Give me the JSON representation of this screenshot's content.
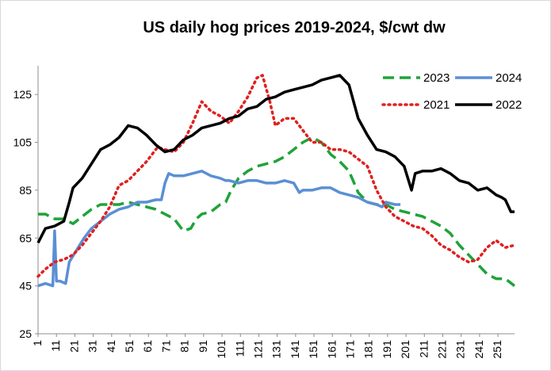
{
  "chart_data": {
    "type": "line",
    "title": "US daily hog prices 2019-2024, $/cwt dw",
    "xlabel": "",
    "ylabel": "",
    "xlim": [
      1,
      260
    ],
    "ylim": [
      25,
      135
    ],
    "x_ticks": [
      1,
      11,
      21,
      31,
      41,
      51,
      61,
      71,
      81,
      91,
      101,
      111,
      121,
      131,
      141,
      151,
      161,
      171,
      181,
      191,
      201,
      211,
      221,
      231,
      241,
      251
    ],
    "y_ticks": [
      25,
      45,
      65,
      85,
      105,
      125
    ],
    "grid": false,
    "legend": "top-right",
    "series": [
      {
        "name": "2023",
        "color": "#1fa33a",
        "style": "dashed",
        "points": [
          [
            1,
            75
          ],
          [
            5,
            75
          ],
          [
            10,
            73
          ],
          [
            15,
            73
          ],
          [
            20,
            71
          ],
          [
            25,
            74
          ],
          [
            30,
            77
          ],
          [
            35,
            79
          ],
          [
            40,
            79
          ],
          [
            45,
            79
          ],
          [
            50,
            80
          ],
          [
            55,
            79
          ],
          [
            60,
            78
          ],
          [
            65,
            77
          ],
          [
            70,
            75
          ],
          [
            75,
            73
          ],
          [
            80,
            68
          ],
          [
            84,
            69
          ],
          [
            87,
            73
          ],
          [
            90,
            75
          ],
          [
            95,
            76
          ],
          [
            100,
            79
          ],
          [
            103,
            80
          ],
          [
            106,
            85
          ],
          [
            110,
            90
          ],
          [
            115,
            93
          ],
          [
            120,
            95
          ],
          [
            125,
            96
          ],
          [
            130,
            97
          ],
          [
            135,
            99
          ],
          [
            140,
            102
          ],
          [
            145,
            105
          ],
          [
            150,
            107
          ],
          [
            155,
            105
          ],
          [
            160,
            100
          ],
          [
            165,
            97
          ],
          [
            170,
            93
          ],
          [
            175,
            84
          ],
          [
            180,
            80
          ],
          [
            185,
            79
          ],
          [
            190,
            79
          ],
          [
            195,
            77
          ],
          [
            200,
            76
          ],
          [
            205,
            75
          ],
          [
            210,
            74
          ],
          [
            215,
            72
          ],
          [
            220,
            70
          ],
          [
            225,
            67
          ],
          [
            230,
            62
          ],
          [
            235,
            58
          ],
          [
            240,
            54
          ],
          [
            245,
            50
          ],
          [
            250,
            48
          ],
          [
            255,
            48
          ],
          [
            260,
            45
          ]
        ]
      },
      {
        "name": "2024",
        "color": "#5b8fd4",
        "style": "solid",
        "points": [
          [
            1,
            45
          ],
          [
            5,
            46
          ],
          [
            9,
            45
          ],
          [
            10,
            68
          ],
          [
            11,
            47
          ],
          [
            13,
            47
          ],
          [
            16,
            46
          ],
          [
            18,
            55
          ],
          [
            22,
            60
          ],
          [
            26,
            65
          ],
          [
            30,
            69
          ],
          [
            35,
            72
          ],
          [
            40,
            75
          ],
          [
            45,
            77
          ],
          [
            50,
            78
          ],
          [
            55,
            80
          ],
          [
            60,
            80
          ],
          [
            65,
            81
          ],
          [
            68,
            81
          ],
          [
            70,
            88
          ],
          [
            72,
            92
          ],
          [
            75,
            91
          ],
          [
            80,
            91
          ],
          [
            85,
            92
          ],
          [
            90,
            93
          ],
          [
            95,
            91
          ],
          [
            100,
            90
          ],
          [
            103,
            89
          ],
          [
            105,
            89
          ],
          [
            110,
            88
          ],
          [
            115,
            89
          ],
          [
            120,
            89
          ],
          [
            125,
            88
          ],
          [
            130,
            88
          ],
          [
            135,
            89
          ],
          [
            140,
            88
          ],
          [
            143,
            84
          ],
          [
            145,
            85
          ],
          [
            150,
            85
          ],
          [
            155,
            86
          ],
          [
            160,
            86
          ],
          [
            165,
            84
          ],
          [
            170,
            83
          ],
          [
            175,
            82
          ],
          [
            180,
            80
          ],
          [
            185,
            79
          ],
          [
            188,
            78
          ],
          [
            190,
            80
          ],
          [
            195,
            79
          ],
          [
            198,
            79
          ]
        ]
      },
      {
        "name": "2021",
        "color": "#e02020",
        "style": "dotted",
        "points": [
          [
            1,
            49
          ],
          [
            5,
            52
          ],
          [
            10,
            55
          ],
          [
            15,
            56
          ],
          [
            20,
            58
          ],
          [
            25,
            62
          ],
          [
            30,
            67
          ],
          [
            35,
            72
          ],
          [
            40,
            78
          ],
          [
            45,
            87
          ],
          [
            50,
            89
          ],
          [
            55,
            93
          ],
          [
            60,
            97
          ],
          [
            63,
            100
          ],
          [
            66,
            103
          ],
          [
            70,
            102
          ],
          [
            75,
            101
          ],
          [
            80,
            105
          ],
          [
            85,
            113
          ],
          [
            90,
            122
          ],
          [
            95,
            118
          ],
          [
            100,
            116
          ],
          [
            105,
            113
          ],
          [
            110,
            118
          ],
          [
            115,
            124
          ],
          [
            120,
            132
          ],
          [
            123,
            133
          ],
          [
            127,
            122
          ],
          [
            130,
            112
          ],
          [
            135,
            115
          ],
          [
            140,
            115
          ],
          [
            145,
            110
          ],
          [
            150,
            105
          ],
          [
            155,
            105
          ],
          [
            160,
            102
          ],
          [
            165,
            102
          ],
          [
            170,
            101
          ],
          [
            175,
            98
          ],
          [
            180,
            95
          ],
          [
            185,
            85
          ],
          [
            190,
            78
          ],
          [
            195,
            74
          ],
          [
            200,
            72
          ],
          [
            205,
            70
          ],
          [
            210,
            69
          ],
          [
            215,
            66
          ],
          [
            220,
            62
          ],
          [
            225,
            60
          ],
          [
            230,
            57
          ],
          [
            235,
            55
          ],
          [
            240,
            56
          ],
          [
            245,
            61
          ],
          [
            250,
            64
          ],
          [
            255,
            61
          ],
          [
            260,
            62
          ]
        ]
      },
      {
        "name": "2022",
        "color": "#000000",
        "style": "solid",
        "points": [
          [
            1,
            63
          ],
          [
            5,
            69
          ],
          [
            10,
            70
          ],
          [
            15,
            72
          ],
          [
            18,
            80
          ],
          [
            20,
            86
          ],
          [
            25,
            90
          ],
          [
            30,
            96
          ],
          [
            35,
            102
          ],
          [
            40,
            104
          ],
          [
            45,
            107
          ],
          [
            50,
            112
          ],
          [
            55,
            111
          ],
          [
            60,
            108
          ],
          [
            65,
            104
          ],
          [
            70,
            101
          ],
          [
            75,
            102
          ],
          [
            80,
            106
          ],
          [
            85,
            108
          ],
          [
            90,
            111
          ],
          [
            95,
            112
          ],
          [
            100,
            113
          ],
          [
            105,
            115
          ],
          [
            110,
            116
          ],
          [
            115,
            119
          ],
          [
            120,
            120
          ],
          [
            125,
            123
          ],
          [
            130,
            124
          ],
          [
            135,
            126
          ],
          [
            140,
            127
          ],
          [
            145,
            128
          ],
          [
            150,
            129
          ],
          [
            155,
            131
          ],
          [
            160,
            132
          ],
          [
            165,
            133
          ],
          [
            170,
            129
          ],
          [
            175,
            115
          ],
          [
            180,
            108
          ],
          [
            185,
            102
          ],
          [
            190,
            101
          ],
          [
            195,
            99
          ],
          [
            200,
            95
          ],
          [
            204,
            85
          ],
          [
            206,
            92
          ],
          [
            210,
            93
          ],
          [
            215,
            93
          ],
          [
            220,
            94
          ],
          [
            225,
            92
          ],
          [
            230,
            89
          ],
          [
            235,
            88
          ],
          [
            240,
            85
          ],
          [
            245,
            86
          ],
          [
            250,
            83
          ],
          [
            253,
            82
          ],
          [
            255,
            81
          ],
          [
            258,
            76
          ],
          [
            260,
            76
          ]
        ]
      }
    ]
  }
}
